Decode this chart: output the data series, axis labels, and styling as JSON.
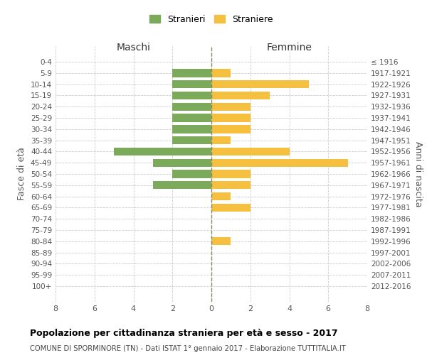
{
  "age_groups": [
    "0-4",
    "5-9",
    "10-14",
    "15-19",
    "20-24",
    "25-29",
    "30-34",
    "35-39",
    "40-44",
    "45-49",
    "50-54",
    "55-59",
    "60-64",
    "65-69",
    "70-74",
    "75-79",
    "80-84",
    "85-89",
    "90-94",
    "95-99",
    "100+"
  ],
  "birth_years": [
    "2012-2016",
    "2007-2011",
    "2002-2006",
    "1997-2001",
    "1992-1996",
    "1987-1991",
    "1982-1986",
    "1977-1981",
    "1972-1976",
    "1967-1971",
    "1962-1966",
    "1957-1961",
    "1952-1956",
    "1947-1951",
    "1942-1946",
    "1937-1941",
    "1932-1936",
    "1927-1931",
    "1922-1926",
    "1917-1921",
    "≤ 1916"
  ],
  "maschi": [
    0,
    2,
    2,
    2,
    2,
    2,
    2,
    2,
    5,
    3,
    2,
    3,
    0,
    0,
    0,
    0,
    0,
    0,
    0,
    0,
    0
  ],
  "femmine": [
    0,
    1,
    5,
    3,
    2,
    2,
    2,
    1,
    4,
    7,
    2,
    2,
    1,
    2,
    0,
    0,
    1,
    0,
    0,
    0,
    0
  ],
  "color_maschi": "#7aaa5a",
  "color_femmine": "#f5c040",
  "color_grid": "#cccccc",
  "color_zeroline": "#888866",
  "title": "Popolazione per cittadinanza straniera per età e sesso - 2017",
  "subtitle": "COMUNE DI SPORMINORE (TN) - Dati ISTAT 1° gennaio 2017 - Elaborazione TUTTITALIA.IT",
  "label_maschi": "Maschi",
  "label_femmine": "Femmine",
  "ylabel_left": "Fasce di età",
  "ylabel_right": "Anni di nascita",
  "legend_maschi": "Stranieri",
  "legend_femmine": "Straniere",
  "xlim": 8,
  "background_color": "#ffffff"
}
